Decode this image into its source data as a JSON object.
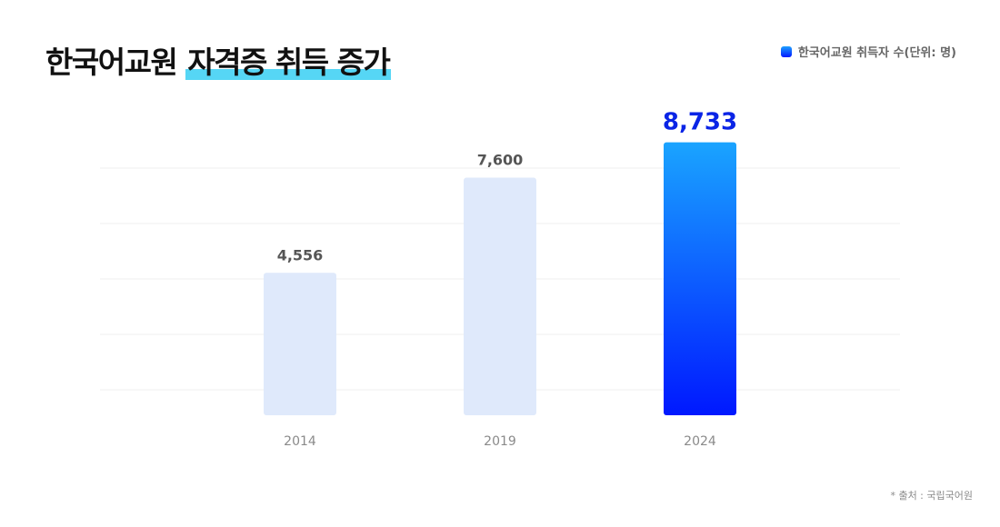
{
  "title": {
    "main": "한국어교원",
    "highlight": "자격증 취득 증가"
  },
  "legend": {
    "label": "한국어교원 취득자 수(단위: 명)"
  },
  "source": "* 출처 : 국립국어원",
  "colors": {
    "muted_bar": "#dfe9fb",
    "highlight_top": "#1aa4ff",
    "highlight_bottom": "#0018ff",
    "highlight_label": "#0a24e6",
    "muted_label": "#555555",
    "title_highlight": "#56d6f5"
  },
  "chart_data": {
    "type": "bar",
    "categories": [
      "2014",
      "2019",
      "2024"
    ],
    "values": [
      4556,
      7600,
      8733
    ],
    "value_labels": [
      "4,556",
      "7,600",
      "8,733"
    ],
    "highlighted_index": 2,
    "ylim": [
      0,
      10000
    ],
    "grid": true,
    "legend_position": "top-right"
  }
}
